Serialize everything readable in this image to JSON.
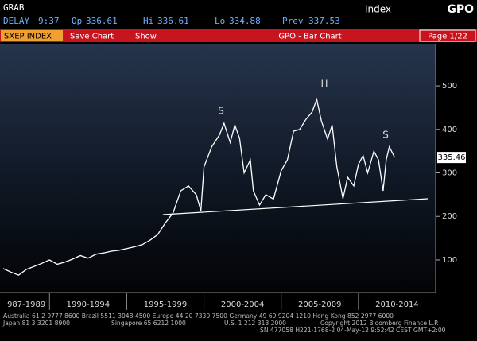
{
  "header": {
    "function": "GRAB",
    "asset_class": "Index",
    "ticker": "GPO"
  },
  "quote": {
    "status": "DELAY",
    "time": "9:37",
    "open_label": "Op",
    "open": 336.61,
    "high_label": "Hi",
    "high": 336.61,
    "low_label": "Lo",
    "low": 334.88,
    "prev_label": "Prev",
    "prev": 337.53
  },
  "toolbar": {
    "security": "SXEP INDEX",
    "buttons": [
      "Save Chart",
      "Show"
    ],
    "title": "GPO - Bar Chart",
    "page": "Page 1/22"
  },
  "chart_data": {
    "type": "line",
    "annotations": [
      "S",
      "H",
      "S"
    ],
    "last_price": 335.46,
    "x": [
      1987.0,
      1987.5,
      1988.0,
      1988.5,
      1989.0,
      1989.5,
      1990.0,
      1990.5,
      1991.0,
      1991.5,
      1992.0,
      1992.5,
      1993.0,
      1993.5,
      1994.0,
      1994.5,
      1995.0,
      1995.5,
      1996.0,
      1996.5,
      1997.0,
      1997.5,
      1998.0,
      1998.5,
      1999.0,
      1999.5,
      1999.8,
      2000.0,
      2000.5,
      2001.0,
      2001.3,
      2001.7,
      2002.0,
      2002.3,
      2002.6,
      2003.0,
      2003.2,
      2003.6,
      2004.0,
      2004.5,
      2005.0,
      2005.4,
      2005.8,
      2006.2,
      2006.6,
      2007.0,
      2007.3,
      2007.6,
      2008.0,
      2008.3,
      2008.6,
      2009.0,
      2009.3,
      2009.7,
      2010.0,
      2010.3,
      2010.6,
      2011.0,
      2011.3,
      2011.6,
      2011.8,
      2012.0,
      2012.35
    ],
    "series": [
      {
        "name": "GPO",
        "color": "#ffffff",
        "values": [
          80,
          72,
          65,
          78,
          85,
          92,
          100,
          90,
          95,
          102,
          110,
          104,
          113,
          116,
          120,
          122,
          126,
          130,
          135,
          145,
          158,
          185,
          208,
          259,
          270,
          250,
          213,
          314,
          360,
          387,
          414,
          370,
          410,
          380,
          300,
          330,
          259,
          226,
          250,
          240,
          305,
          330,
          396,
          400,
          423,
          440,
          469,
          420,
          378,
          410,
          314,
          241,
          290,
          270,
          320,
          340,
          300,
          350,
          330,
          259,
          330,
          360,
          335.46
        ]
      }
    ],
    "xlim": [
      1987,
      2015
    ],
    "xticks": [
      {
        "value": 1987,
        "label": "987-1989"
      },
      {
        "value": 1990,
        "label": "1990-1994"
      },
      {
        "value": 1995,
        "label": "1995-1999"
      },
      {
        "value": 2000,
        "label": "2000-2004"
      },
      {
        "value": 2005,
        "label": "2005-2009"
      },
      {
        "value": 2010,
        "label": "2010-2014"
      }
    ],
    "ylim": [
      25,
      597
    ],
    "yticks": [
      100,
      200,
      300,
      400,
      500
    ]
  },
  "footer": {
    "line1": "Australia 61 2 9777 8600 Brazil 5511 3048 4500 Europe 44 20 7330 7500 Germany 49 69 9204 1210 Hong Kong 852 2977 6000",
    "line2a": "Japan 81 3 3201 8900",
    "line2b": "Singapore 65 6212 1000",
    "line2c": "U.S. 1 212 318 2000",
    "line2d": "Copyright 2012 Bloomberg Finance L.P.",
    "line3": "SN 477058 H221-1768-2 04-May-12 9:52:42 CEST GMT+2:00"
  }
}
